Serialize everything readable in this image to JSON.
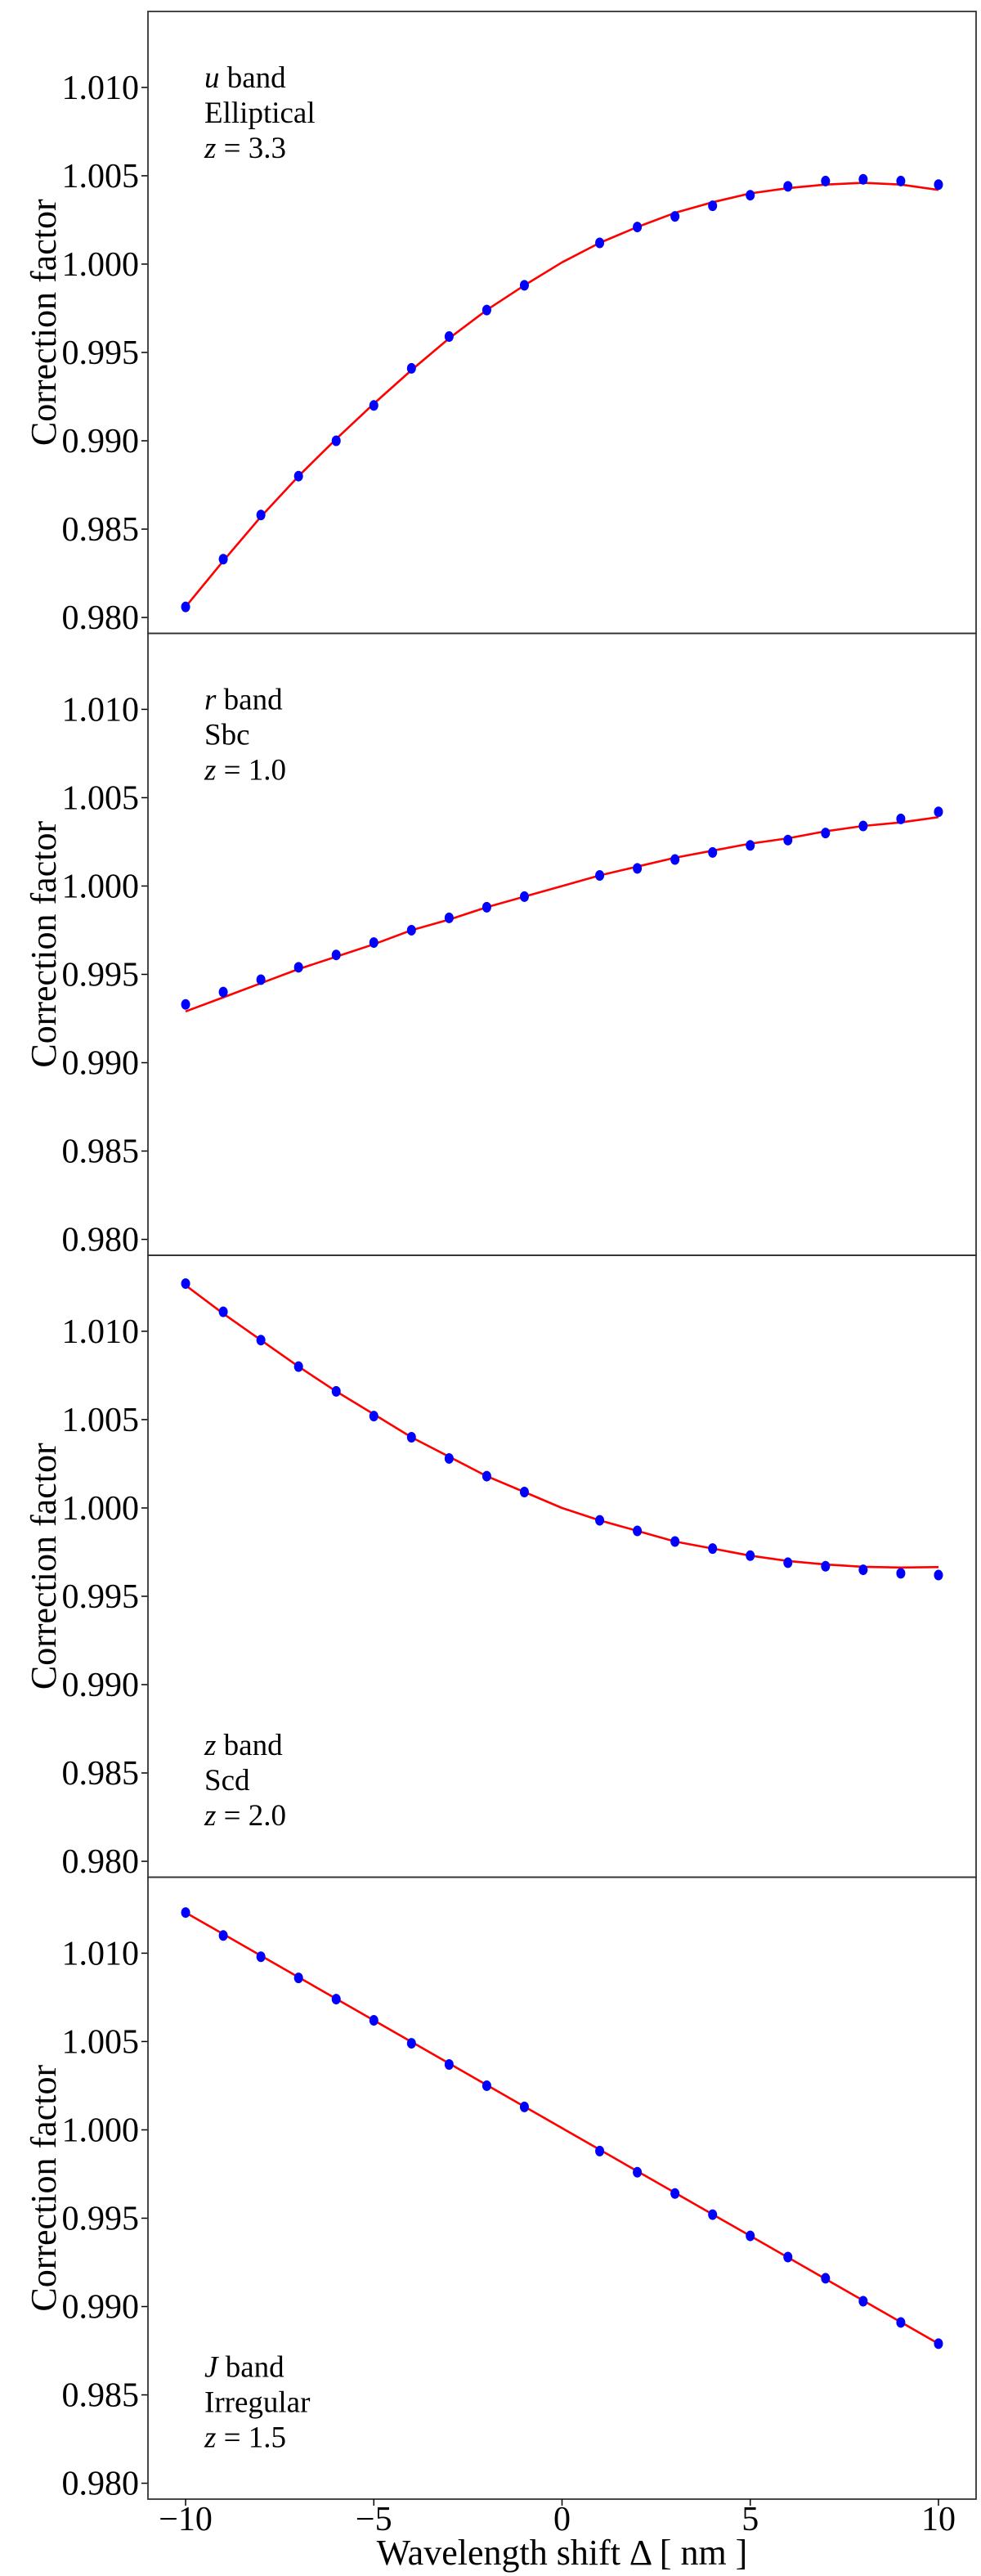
{
  "chart_data": [
    {
      "type": "scatter",
      "annotation": {
        "band_symbol": "u",
        "band_word": " band",
        "galaxy": "Elliptical",
        "z_symbol": "z",
        "z_value": " = 3.3"
      },
      "annotation_position": "top-left",
      "ylabel": "Correction factor",
      "ylim": [
        0.9791,
        1.0143
      ],
      "yticks": [
        "0.980",
        "0.985",
        "0.990",
        "0.995",
        "1.000",
        "1.005",
        "1.010"
      ],
      "x": [
        -10,
        -9,
        -8,
        -7,
        -6,
        -5,
        -4,
        -3,
        -2,
        -1,
        1,
        2,
        3,
        4,
        5,
        6,
        7,
        8,
        9,
        10
      ],
      "points": [
        0.9806,
        0.9833,
        0.9858,
        0.988,
        0.99,
        0.992,
        0.9941,
        0.9959,
        0.9974,
        0.9988,
        1.0012,
        1.0021,
        1.0027,
        1.0033,
        1.0039,
        1.0044,
        1.0047,
        1.0048,
        1.0047,
        1.0045
      ],
      "fit_x": [
        -10,
        -9,
        -8,
        -7,
        -6,
        -5,
        -4,
        -3,
        -2,
        -1,
        0,
        1,
        2,
        3,
        4,
        5,
        6,
        7,
        8,
        9,
        10
      ],
      "fit": [
        0.9806,
        0.9832,
        0.9857,
        0.988,
        0.9901,
        0.9921,
        0.994,
        0.9958,
        0.9974,
        0.9988,
        1.0001,
        1.0012,
        1.0021,
        1.0029,
        1.0035,
        1.004,
        1.0043,
        1.0045,
        1.0046,
        1.0045,
        1.0042
      ]
    },
    {
      "type": "scatter",
      "annotation": {
        "band_symbol": "r",
        "band_word": " band",
        "galaxy": "Sbc",
        "z_symbol": "z",
        "z_value": " = 1.0"
      },
      "annotation_position": "top-left",
      "ylabel": "Correction factor",
      "ylim": [
        0.9791,
        1.0143
      ],
      "yticks": [
        "0.980",
        "0.985",
        "0.990",
        "0.995",
        "1.000",
        "1.005",
        "1.010"
      ],
      "x": [
        -10,
        -9,
        -8,
        -7,
        -6,
        -5,
        -4,
        -3,
        -2,
        -1,
        1,
        2,
        3,
        4,
        5,
        6,
        7,
        8,
        9,
        10
      ],
      "points": [
        0.9933,
        0.994,
        0.9947,
        0.9954,
        0.9961,
        0.9968,
        0.9975,
        0.9982,
        0.9988,
        0.9994,
        1.0006,
        1.001,
        1.0015,
        1.0019,
        1.0023,
        1.0026,
        1.003,
        1.0034,
        1.0038,
        1.0042
      ],
      "fit_x": [
        -10,
        -9,
        -8,
        -7,
        -6,
        -5,
        -4,
        -3,
        -2,
        -1,
        0,
        1,
        2,
        3,
        4,
        5,
        6,
        7,
        8,
        9,
        10
      ],
      "fit": [
        0.9929,
        0.9937,
        0.9945,
        0.9953,
        0.996,
        0.9967,
        0.9975,
        0.9981,
        0.9988,
        0.9994,
        1.0,
        1.0006,
        1.0011,
        1.0016,
        1.002,
        1.0024,
        1.0027,
        1.0031,
        1.0034,
        1.0036,
        1.0039
      ]
    },
    {
      "type": "scatter",
      "annotation": {
        "band_symbol": "z",
        "band_word": " band",
        "galaxy": "Scd",
        "z_symbol": "z",
        "z_value": " = 2.0"
      },
      "annotation_position": "bottom-left",
      "ylabel": "Correction factor",
      "ylim": [
        0.9791,
        1.0143
      ],
      "yticks": [
        "0.980",
        "0.985",
        "0.990",
        "0.995",
        "1.000",
        "1.005",
        "1.010"
      ],
      "x": [
        -10,
        -9,
        -8,
        -7,
        -6,
        -5,
        -4,
        -3,
        -2,
        -1,
        1,
        2,
        3,
        4,
        5,
        6,
        7,
        8,
        9,
        10
      ],
      "points": [
        1.0127,
        1.0111,
        1.0095,
        1.008,
        1.0066,
        1.0052,
        1.004,
        1.0028,
        1.0018,
        1.0009,
        0.9993,
        0.9987,
        0.9981,
        0.9977,
        0.9973,
        0.9969,
        0.9967,
        0.9965,
        0.9963,
        0.9962
      ],
      "fit_x": [
        -10,
        -9,
        -8,
        -7,
        -6,
        -5,
        -4,
        -3,
        -2,
        -1,
        0,
        1,
        2,
        3,
        4,
        5,
        6,
        7,
        8,
        9,
        10
      ],
      "fit": [
        1.0126,
        1.011,
        1.0095,
        1.008,
        1.0066,
        1.0053,
        1.004,
        1.0029,
        1.0018,
        1.0009,
        1.0,
        0.9993,
        0.9987,
        0.9981,
        0.9977,
        0.9973,
        0.997,
        0.9968,
        0.99667,
        0.99663,
        0.99665
      ]
    },
    {
      "type": "scatter",
      "annotation": {
        "band_symbol": "J",
        "band_word": " band",
        "galaxy": "Irregular",
        "z_symbol": "z",
        "z_value": " = 1.5"
      },
      "annotation_position": "bottom-left",
      "ylabel": "Correction factor",
      "ylim": [
        0.9791,
        1.0143
      ],
      "yticks": [
        "0.980",
        "0.985",
        "0.990",
        "0.995",
        "1.000",
        "1.005",
        "1.010"
      ],
      "x": [
        -10,
        -9,
        -8,
        -7,
        -6,
        -5,
        -4,
        -3,
        -2,
        -1,
        1,
        2,
        3,
        4,
        5,
        6,
        7,
        8,
        9,
        10
      ],
      "points": [
        1.0123,
        1.011,
        1.0098,
        1.0086,
        1.0074,
        1.0062,
        1.0049,
        1.0037,
        1.0025,
        1.0013,
        0.9988,
        0.9976,
        0.9964,
        0.9952,
        0.994,
        0.9928,
        0.9916,
        0.9903,
        0.9891,
        0.9879
      ],
      "fit_x": [
        -10,
        10
      ],
      "fit": [
        1.0123,
        0.9879
      ],
      "xlabel": "Wavelength shift Δ   [ nm ]",
      "xticks": [
        "−10",
        "−5",
        "0",
        "5",
        "10"
      ],
      "xtick_values": [
        -10,
        -5,
        0,
        5,
        10
      ]
    }
  ],
  "xlim": [
    -11,
    11
  ],
  "colors": {
    "points": "#0000ff",
    "fit": "#ff0000",
    "frame": "#333333"
  }
}
